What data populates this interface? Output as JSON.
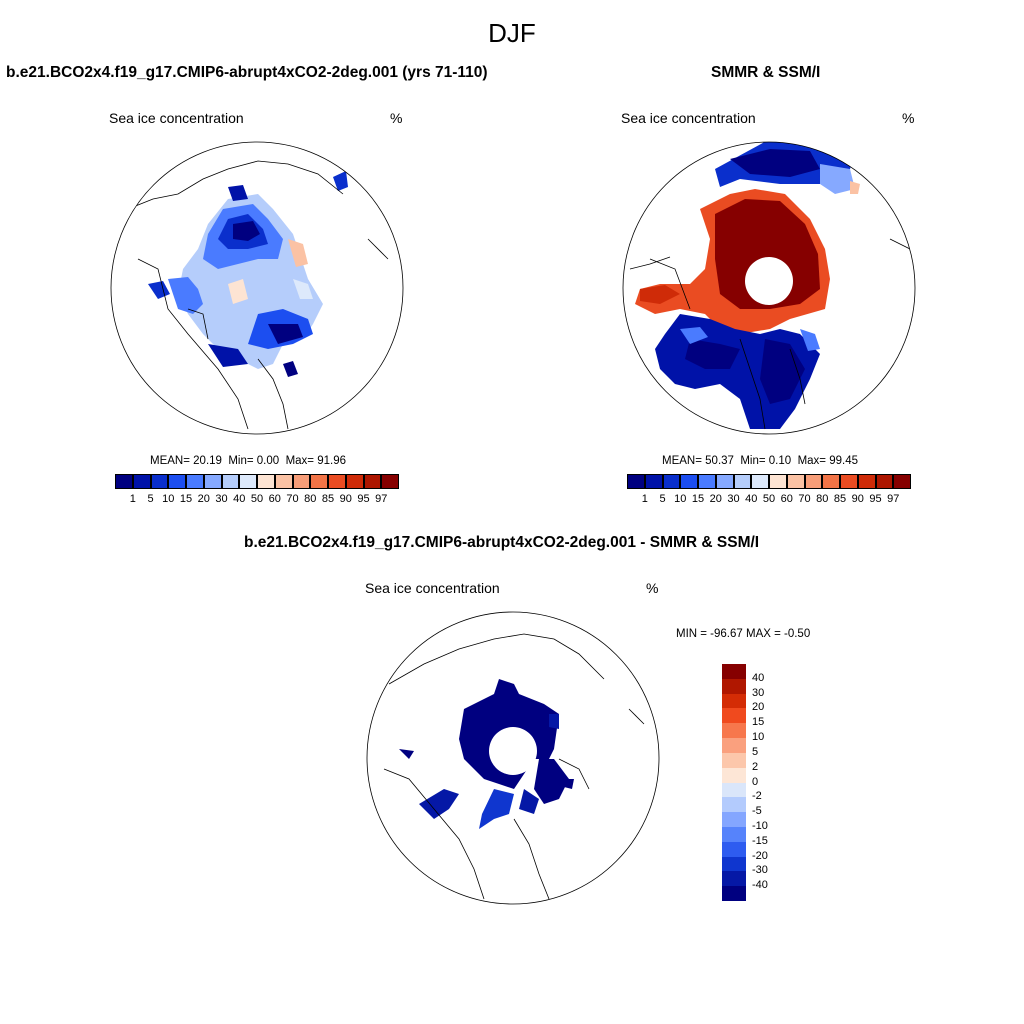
{
  "figure_title": "DJF",
  "panels": {
    "left": {
      "title": "b.e21.BCO2x4.f19_g17.CMIP6-abrupt4xCO2-2deg.001 (yrs 71-110)",
      "subtitle": "Sea ice concentration",
      "units": "%",
      "stats": {
        "mean_label": "MEAN=",
        "mean": "20.19",
        "min_label": "Min=",
        "min": "0.00",
        "max_label": "Max=",
        "max": "91.96"
      }
    },
    "right": {
      "title": "SMMR & SSM/I",
      "subtitle": "Sea ice concentration",
      "units": "%",
      "stats": {
        "mean_label": "MEAN=",
        "mean": "50.37",
        "min_label": "Min=",
        "min": "0.10",
        "max_label": "Max=",
        "max": "99.45"
      }
    },
    "bottom": {
      "title": "b.e21.BCO2x4.f19_g17.CMIP6-abrupt4xCO2-2deg.001 - SMMR & SSM/I",
      "subtitle": "Sea ice concentration",
      "units": "%",
      "minmax_text": "MIN = -96.67 MAX =  -0.50"
    }
  },
  "concentration_colorbar": {
    "labels": [
      "1",
      "5",
      "10",
      "15",
      "20",
      "30",
      "40",
      "50",
      "60",
      "70",
      "80",
      "85",
      "90",
      "95",
      "97"
    ],
    "colors": [
      "#000080",
      "#0012a8",
      "#0a2fcc",
      "#1c4ef0",
      "#4a7bff",
      "#86a9ff",
      "#b5cdfb",
      "#dde9fb",
      "#fde4d3",
      "#fbc2a4",
      "#f79d78",
      "#f27447",
      "#ea4c22",
      "#cf2b08",
      "#ad1600",
      "#860000"
    ]
  },
  "difference_colorbar": {
    "labels": [
      "40",
      "30",
      "20",
      "15",
      "10",
      "5",
      "2",
      "0",
      "-2",
      "-5",
      "-10",
      "-15",
      "-20",
      "-30",
      "-40"
    ],
    "colors": [
      "#860000",
      "#b01700",
      "#d42c05",
      "#f04a1e",
      "#f7774c",
      "#faa07e",
      "#fcc7ab",
      "#fde6d6",
      "#dae6fa",
      "#b3cbfd",
      "#84a6ff",
      "#5683fb",
      "#2e5cf0",
      "#0f36cf",
      "#0518a6",
      "#000080"
    ]
  },
  "chart_data": [
    {
      "type": "heatmap",
      "projection": "north-polar-stereographic",
      "title": "b.e21.BCO2x4.f19_g17.CMIP6-abrupt4xCO2-2deg.001 (yrs 71-110)",
      "variable": "Sea ice concentration",
      "units": "%",
      "mean": 20.19,
      "min": 0.0,
      "max": 91.96,
      "levels": [
        1,
        5,
        10,
        15,
        20,
        30,
        40,
        50,
        60,
        70,
        80,
        85,
        90,
        95,
        97
      ]
    },
    {
      "type": "heatmap",
      "projection": "north-polar-stereographic",
      "title": "SMMR & SSM/I",
      "variable": "Sea ice concentration",
      "units": "%",
      "mean": 50.37,
      "min": 0.1,
      "max": 99.45,
      "levels": [
        1,
        5,
        10,
        15,
        20,
        30,
        40,
        50,
        60,
        70,
        80,
        85,
        90,
        95,
        97
      ]
    },
    {
      "type": "heatmap",
      "projection": "north-polar-stereographic",
      "title": "b.e21.BCO2x4.f19_g17.CMIP6-abrupt4xCO2-2deg.001 - SMMR & SSM/I",
      "variable": "Sea ice concentration",
      "units": "%",
      "min": -96.67,
      "max": -0.5,
      "levels": [
        -40,
        -30,
        -20,
        -15,
        -10,
        -5,
        -2,
        0,
        2,
        5,
        10,
        15,
        20,
        30,
        40
      ]
    }
  ]
}
